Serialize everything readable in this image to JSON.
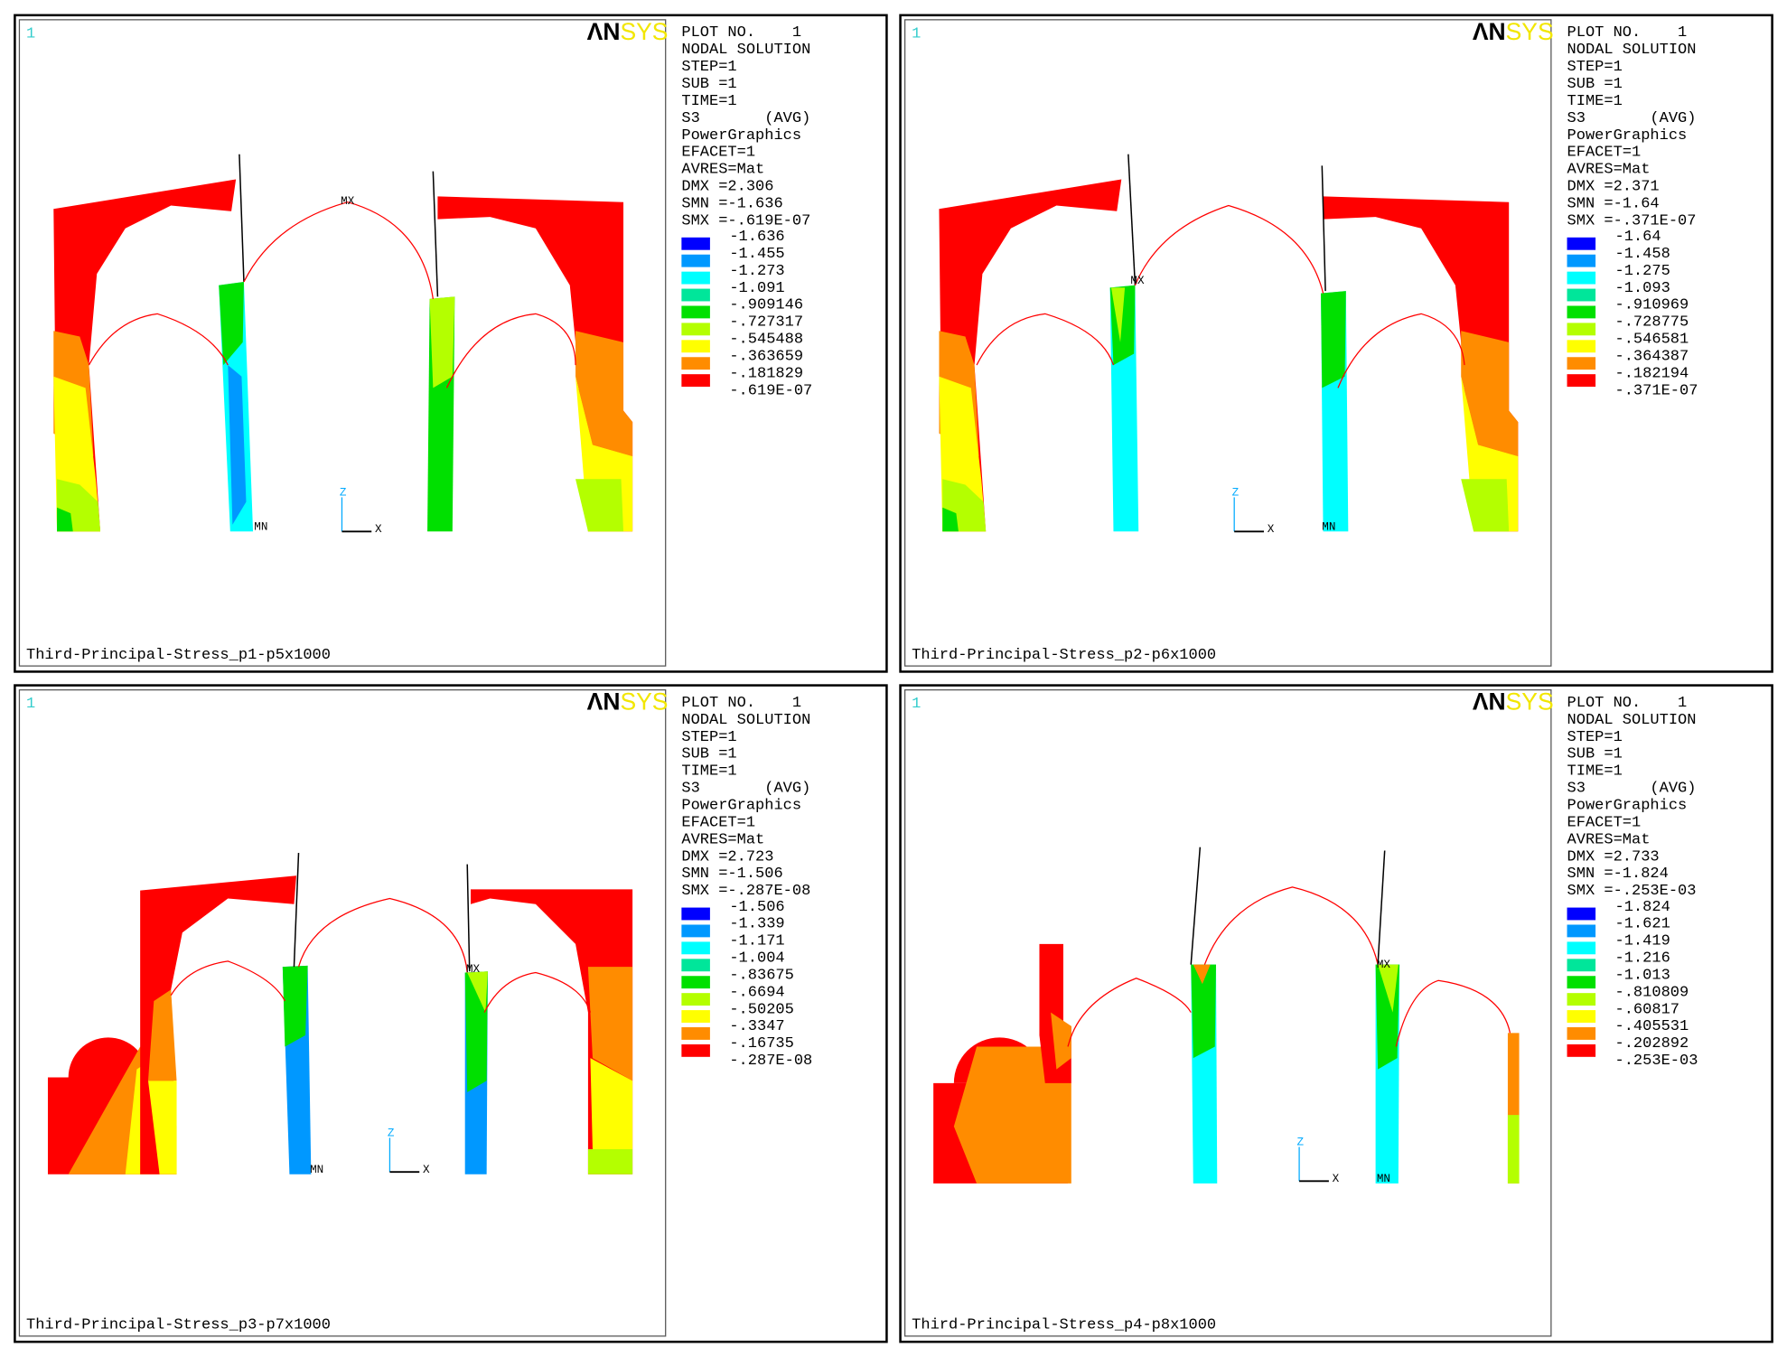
{
  "panels": [
    {
      "window": "1",
      "logo": {
        "a": "ΛN",
        "b": "SYS"
      },
      "info": [
        "PLOT NO.    1",
        "NODAL SOLUTION",
        "STEP=1",
        "SUB =1",
        "TIME=1",
        "S3       (AVG)",
        "PowerGraphics",
        "EFACET=1",
        "AVRES=Mat",
        "DMX =2.306",
        "SMN =-1.636",
        "SMX =-.619E-07"
      ],
      "legend": [
        "-1.636",
        "-1.455",
        "-1.273",
        "-1.091",
        "-.909146",
        "-.727317",
        "-.545488",
        "-.363659",
        "-.181829",
        "-.619E-07"
      ],
      "caption": "Third-Principal-Stress_p1-p5x1000",
      "labels": {
        "mx": "MX",
        "mn": "MN",
        "z": "Z",
        "x": "X"
      }
    },
    {
      "window": "1",
      "logo": {
        "a": "ΛN",
        "b": "SYS"
      },
      "info": [
        "PLOT NO.    1",
        "NODAL SOLUTION",
        "STEP=1",
        "SUB =1",
        "TIME=1",
        "S3       (AVG)",
        "PowerGraphics",
        "EFACET=1",
        "AVRES=Mat",
        "DMX =2.371",
        "SMN =-1.64",
        "SMX =-.371E-07"
      ],
      "legend": [
        "-1.64",
        "-1.458",
        "-1.275",
        "-1.093",
        "-.910969",
        "-.728775",
        "-.546581",
        "-.364387",
        "-.182194",
        "-.371E-07"
      ],
      "caption": "Third-Principal-Stress_p2-p6x1000",
      "labels": {
        "mx": "MX",
        "mn": "MN",
        "z": "Z",
        "x": "X"
      }
    },
    {
      "window": "1",
      "logo": {
        "a": "ΛN",
        "b": "SYS"
      },
      "info": [
        "PLOT NO.    1",
        "NODAL SOLUTION",
        "STEP=1",
        "SUB =1",
        "TIME=1",
        "S3       (AVG)",
        "PowerGraphics",
        "EFACET=1",
        "AVRES=Mat",
        "DMX =2.723",
        "SMN =-1.506",
        "SMX =-.287E-08"
      ],
      "legend": [
        "-1.506",
        "-1.339",
        "-1.171",
        "-1.004",
        "-.83675",
        "-.6694",
        "-.50205",
        "-.3347",
        "-.16735",
        "-.287E-08"
      ],
      "caption": "Third-Principal-Stress_p3-p7x1000",
      "labels": {
        "mx": "MX",
        "mn": "MN",
        "z": "Z",
        "x": "X"
      }
    },
    {
      "window": "1",
      "logo": {
        "a": "ΛN",
        "b": "SYS"
      },
      "info": [
        "PLOT NO.    1",
        "NODAL SOLUTION",
        "STEP=1",
        "SUB =1",
        "TIME=1",
        "S3       (AVG)",
        "PowerGraphics",
        "EFACET=1",
        "AVRES=Mat",
        "DMX =2.733",
        "SMN =-1.824",
        "SMX =-.253E-03"
      ],
      "legend": [
        "-1.824",
        "-1.621",
        "-1.419",
        "-1.216",
        "-1.013",
        "-.810809",
        "-.60817",
        "-.405531",
        "-.202892",
        "-.253E-03"
      ],
      "caption": "Third-Principal-Stress_p4-p8x1000",
      "labels": {
        "mx": "MX",
        "mn": "MN",
        "z": "Z",
        "x": "X"
      }
    }
  ]
}
